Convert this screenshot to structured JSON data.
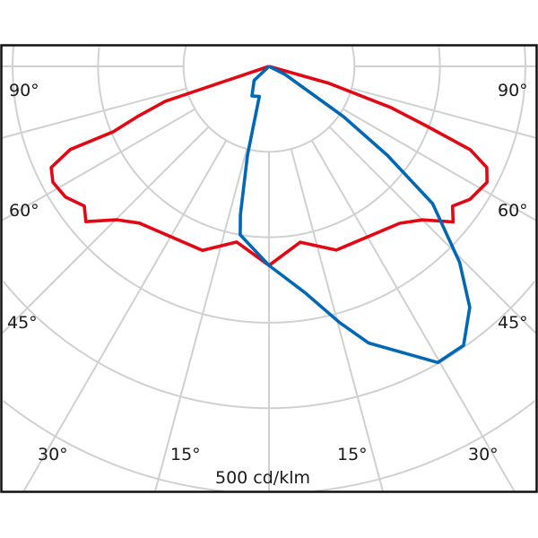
{
  "chart_data": {
    "type": "polar",
    "unit_label": "500 cd/klm",
    "ring_step": 100,
    "ring_count": 6,
    "radial_step_deg": 15,
    "grid": true,
    "grid_color": "#d0d0d0",
    "angle_labels": {
      "left": [
        "90°",
        "60°",
        "45°",
        "30°",
        "15°"
      ],
      "right": [
        "90°",
        "60°",
        "45°",
        "30°",
        "15°"
      ]
    },
    "series": [
      {
        "color": "#e30613",
        "points": [
          [
            -90,
            0
          ],
          [
            -71.4,
            128
          ],
          [
            -69.1,
            165
          ],
          [
            -67.2,
            198
          ],
          [
            -67.3,
            252
          ],
          [
            -65.1,
            281
          ],
          [
            -61.8,
            287
          ],
          [
            -57.3,
            283
          ],
          [
            -52.9,
            271
          ],
          [
            -49.7,
            281
          ],
          [
            -44.8,
            253
          ],
          [
            -39.6,
            238
          ],
          [
            -19.9,
            229
          ],
          [
            -10.4,
            209
          ],
          [
            0,
            233
          ],
          [
            10.1,
            209
          ],
          [
            20.1,
            229
          ],
          [
            39.8,
            239
          ],
          [
            45,
            254
          ],
          [
            49.8,
            282
          ],
          [
            52.7,
            270
          ],
          [
            56.5,
            282
          ],
          [
            62,
            289
          ],
          [
            65.1,
            281
          ],
          [
            67.5,
            255
          ],
          [
            69.3,
            196
          ],
          [
            71.3,
            151
          ],
          [
            74.2,
            73
          ],
          [
            90,
            0
          ]
        ]
      },
      {
        "color": "#0068b4",
        "points": [
          [
            0,
            0
          ],
          [
            -46.7,
            24
          ],
          [
            -29.9,
            40
          ],
          [
            -17.9,
            37
          ],
          [
            -13.6,
            107
          ],
          [
            -10.9,
            177
          ],
          [
            -9.7,
            200
          ],
          [
            0,
            233
          ],
          [
            9.2,
            269
          ],
          [
            15.4,
            311
          ],
          [
            19.8,
            344
          ],
          [
            29.7,
            399
          ],
          [
            34.9,
            398
          ],
          [
            39.8,
            367
          ],
          [
            44.2,
            320
          ],
          [
            50,
            250
          ],
          [
            53.1,
            173
          ],
          [
            56,
            105
          ],
          [
            63.4,
            21
          ],
          [
            0,
            0
          ]
        ]
      }
    ]
  }
}
